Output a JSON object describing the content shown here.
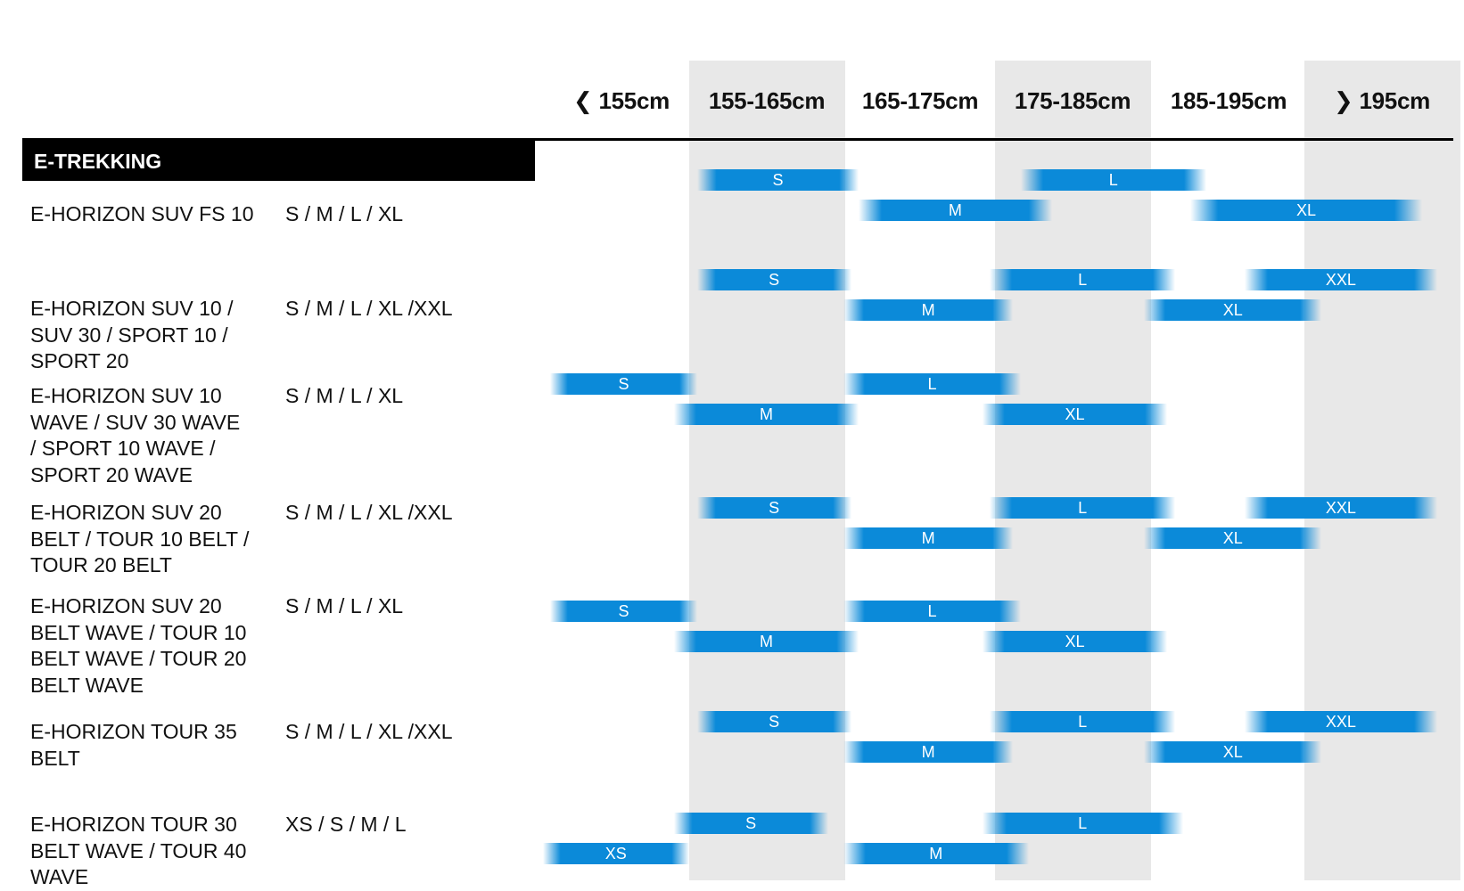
{
  "chart_data": {
    "type": "table",
    "columns": [
      "155cm",
      "155-165cm",
      "165-175cm",
      "175-185cm",
      "185-195cm",
      "195cm"
    ],
    "column_arrows": [
      "left",
      "",
      "",
      "",
      "",
      "right"
    ],
    "section": "E-TREKKING",
    "bar_color": "#0b8ad9",
    "rows": [
      {
        "model": [
          "E-HORIZON SUV FS 10"
        ],
        "sizes": "S / M / L / XL",
        "bars": [
          {
            "label": "S",
            "from": 155.5,
            "to": 166,
            "lane": 0
          },
          {
            "label": "L",
            "from": 176.5,
            "to": 188.5,
            "lane": 0
          },
          {
            "label": "M",
            "from": 166,
            "to": 178.5,
            "lane": 1
          },
          {
            "label": "XL",
            "from": 187.5,
            "to": 202.5,
            "lane": 1
          }
        ]
      },
      {
        "model": [
          "E-HORIZON SUV 10 /",
          "SUV 30 / SPORT 10 /",
          "SPORT 20"
        ],
        "sizes": "S / M / L / XL /XXL",
        "bars": [
          {
            "label": "S",
            "from": 155.5,
            "to": 165.5,
            "lane": 0
          },
          {
            "label": "L",
            "from": 174.5,
            "to": 186.5,
            "lane": 0
          },
          {
            "label": "XXL",
            "from": 191,
            "to": 203.5,
            "lane": 0
          },
          {
            "label": "M",
            "from": 165,
            "to": 176,
            "lane": 1
          },
          {
            "label": "XL",
            "from": 184.5,
            "to": 196,
            "lane": 1
          }
        ]
      },
      {
        "model": [
          "E-HORIZON SUV 10",
          "WAVE / SUV 30 WAVE",
          "/ SPORT 10 WAVE /",
          "SPORT 20 WAVE"
        ],
        "sizes": "S / M / L / XL",
        "bars": [
          {
            "label": "S",
            "from": 146,
            "to": 155.5,
            "lane": 0
          },
          {
            "label": "L",
            "from": 165,
            "to": 176.5,
            "lane": 0
          },
          {
            "label": "M",
            "from": 154,
            "to": 166,
            "lane": 1
          },
          {
            "label": "XL",
            "from": 174,
            "to": 186,
            "lane": 1
          }
        ]
      },
      {
        "model": [
          "E-HORIZON SUV 20",
          "BELT / TOUR 10 BELT /",
          "TOUR 20 BELT"
        ],
        "sizes": "S / M / L / XL /XXL",
        "bars": [
          {
            "label": "S",
            "from": 155.5,
            "to": 165.5,
            "lane": 0
          },
          {
            "label": "L",
            "from": 174.5,
            "to": 186.5,
            "lane": 0
          },
          {
            "label": "XXL",
            "from": 191,
            "to": 203.5,
            "lane": 0
          },
          {
            "label": "M",
            "from": 165,
            "to": 176,
            "lane": 1
          },
          {
            "label": "XL",
            "from": 184.5,
            "to": 196,
            "lane": 1
          }
        ]
      },
      {
        "model": [
          "E-HORIZON SUV 20",
          "BELT WAVE / TOUR 10",
          "BELT WAVE / TOUR 20",
          "BELT WAVE"
        ],
        "sizes": "S / M / L / XL",
        "bars": [
          {
            "label": "S",
            "from": 146,
            "to": 155.5,
            "lane": 0
          },
          {
            "label": "L",
            "from": 165,
            "to": 176.5,
            "lane": 0
          },
          {
            "label": "M",
            "from": 154,
            "to": 166,
            "lane": 1
          },
          {
            "label": "XL",
            "from": 174,
            "to": 186,
            "lane": 1
          }
        ]
      },
      {
        "model": [
          "E-HORIZON TOUR 35",
          "BELT"
        ],
        "sizes": "S / M / L / XL /XXL",
        "bars": [
          {
            "label": "S",
            "from": 155.5,
            "to": 165.5,
            "lane": 0
          },
          {
            "label": "L",
            "from": 174.5,
            "to": 186.5,
            "lane": 0
          },
          {
            "label": "XXL",
            "from": 191,
            "to": 203.5,
            "lane": 0
          },
          {
            "label": "M",
            "from": 165,
            "to": 176,
            "lane": 1
          },
          {
            "label": "XL",
            "from": 184.5,
            "to": 196,
            "lane": 1
          }
        ]
      },
      {
        "model": [
          "E-HORIZON TOUR 30",
          "BELT WAVE / TOUR 40",
          "WAVE"
        ],
        "sizes": "XS / S / M / L",
        "bars": [
          {
            "label": "S",
            "from": 154,
            "to": 164,
            "lane": 0
          },
          {
            "label": "L",
            "from": 174,
            "to": 187,
            "lane": 0
          },
          {
            "label": "XS",
            "from": 145.5,
            "to": 155,
            "lane": 1
          },
          {
            "label": "M",
            "from": 165,
            "to": 177,
            "lane": 1
          }
        ]
      }
    ]
  }
}
